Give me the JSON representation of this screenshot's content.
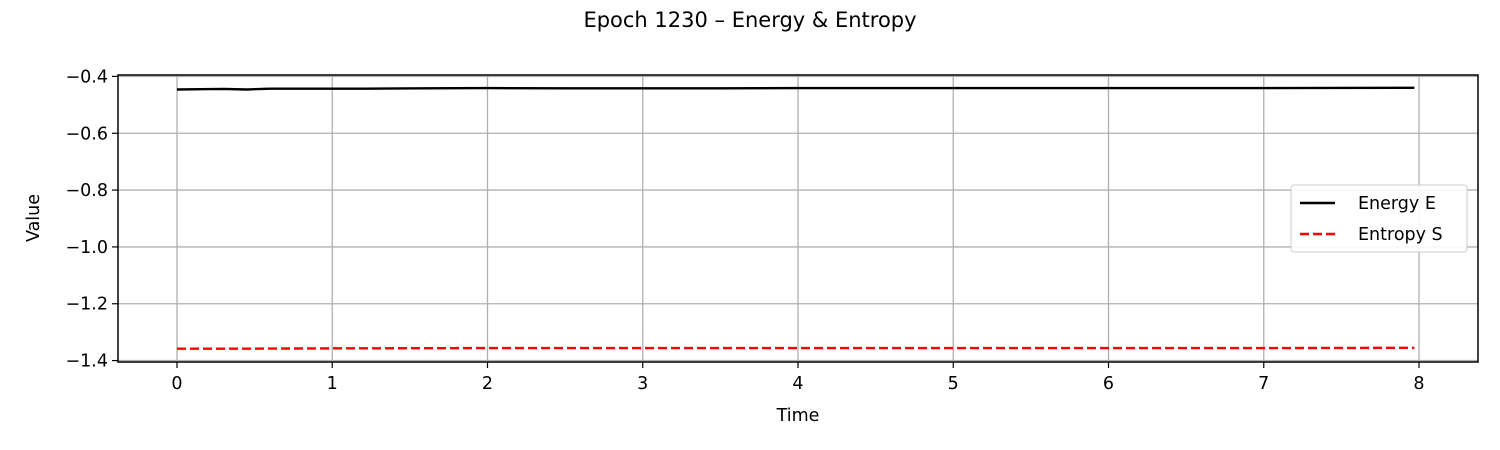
{
  "chart_data": {
    "type": "line",
    "title": "Epoch 1230 – Energy & Entropy",
    "xlabel": "Time",
    "ylabel": "Value",
    "xlim": [
      -0.38,
      8.38
    ],
    "ylim": [
      -1.405,
      -0.395
    ],
    "xticks": [
      0,
      1,
      2,
      3,
      4,
      5,
      6,
      7,
      8
    ],
    "yticks": [
      -0.4,
      -0.6,
      -0.8,
      -1.0,
      -1.2,
      -1.4
    ],
    "ytick_labels": [
      "−0.4",
      "−0.6",
      "−0.8",
      "−1.0",
      "−1.2",
      "−1.4"
    ],
    "grid": true,
    "legend": {
      "placement": "center-right"
    },
    "series": [
      {
        "name": "Energy E",
        "color": "#000000",
        "linestyle": "solid",
        "points": [
          [
            0,
            -0.446
          ],
          [
            0.15,
            -0.445
          ],
          [
            0.3,
            -0.444
          ],
          [
            0.45,
            -0.446
          ],
          [
            0.6,
            -0.443
          ],
          [
            0.9,
            -0.443
          ],
          [
            1.2,
            -0.443
          ],
          [
            1.6,
            -0.442
          ],
          [
            2.0,
            -0.441
          ],
          [
            2.5,
            -0.442
          ],
          [
            3.0,
            -0.442
          ],
          [
            3.5,
            -0.442
          ],
          [
            4.0,
            -0.441
          ],
          [
            5.0,
            -0.441
          ],
          [
            6.0,
            -0.441
          ],
          [
            7.0,
            -0.441
          ],
          [
            7.97,
            -0.44
          ]
        ]
      },
      {
        "name": "Entropy S",
        "color": "#ff0000",
        "linestyle": "dashed",
        "points": [
          [
            0,
            -1.358
          ],
          [
            0.5,
            -1.358
          ],
          [
            1.0,
            -1.357
          ],
          [
            2.0,
            -1.356
          ],
          [
            3.0,
            -1.356
          ],
          [
            4.0,
            -1.356
          ],
          [
            5.0,
            -1.356
          ],
          [
            6.0,
            -1.356
          ],
          [
            7.0,
            -1.356
          ],
          [
            7.97,
            -1.355
          ]
        ]
      }
    ]
  }
}
